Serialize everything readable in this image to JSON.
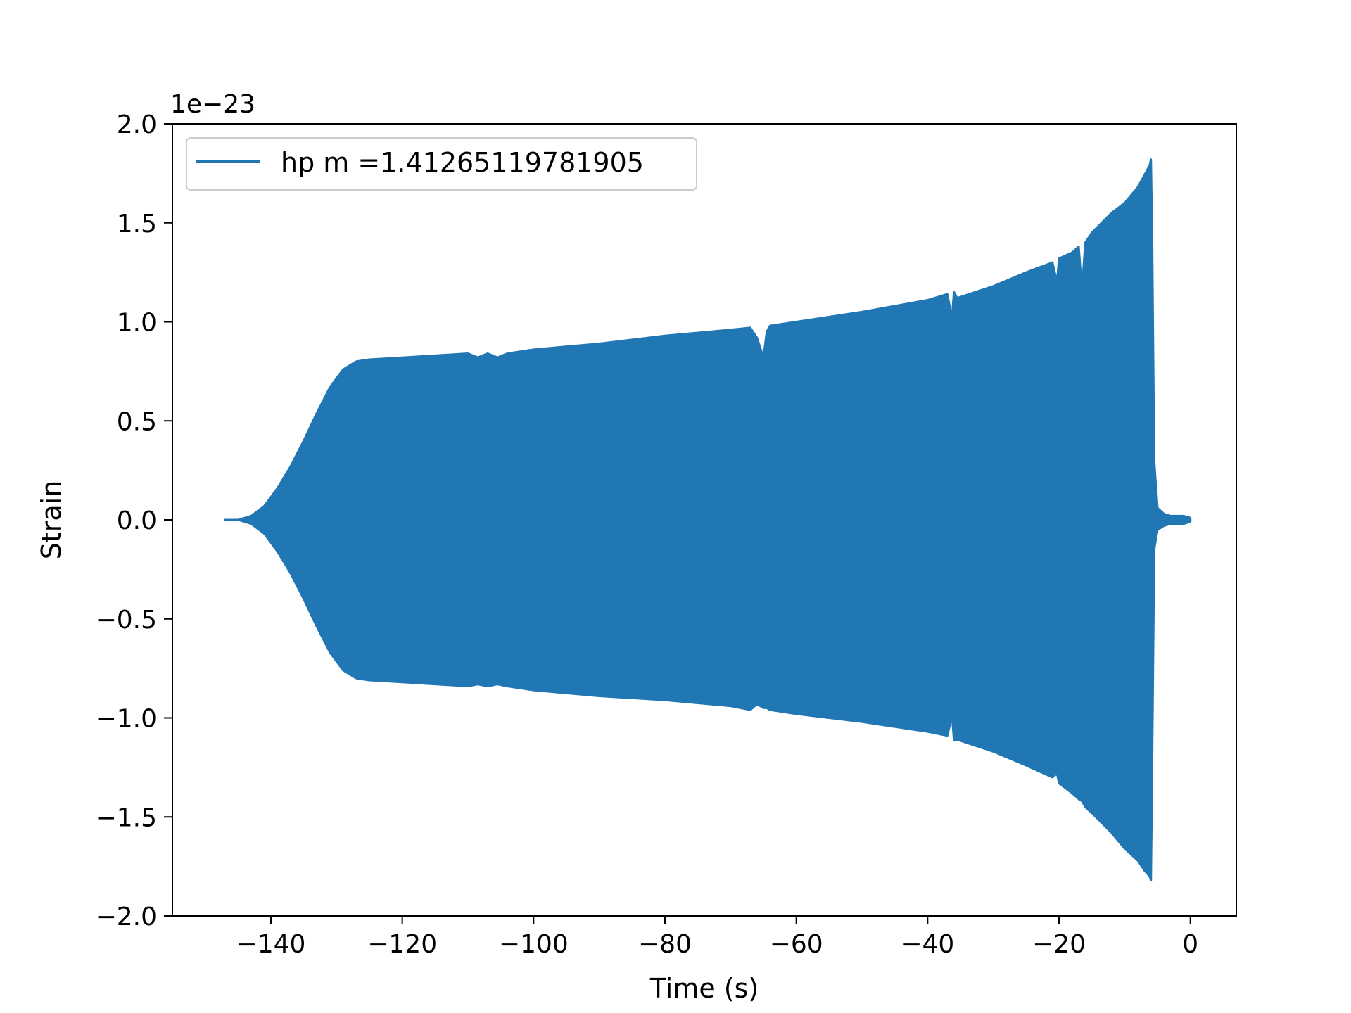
{
  "chart_data": {
    "type": "area",
    "title": "",
    "xlabel": "Time (s)",
    "ylabel": "Strain",
    "y_offset_text": "1e−23",
    "xlim": [
      -155,
      7
    ],
    "ylim": [
      -2.0,
      2.0
    ],
    "x_ticks": [
      -140,
      -120,
      -100,
      -80,
      -60,
      -40,
      -20,
      0
    ],
    "x_tick_labels": [
      "−140",
      "−120",
      "−100",
      "−80",
      "−60",
      "−40",
      "−20",
      "0"
    ],
    "y_ticks": [
      2.0,
      1.5,
      1.0,
      0.5,
      0.0,
      -0.5,
      -1.0,
      -1.5,
      -2.0
    ],
    "y_tick_labels": [
      "2.0",
      "1.5",
      "1.0",
      "0.5",
      "0.0",
      "−0.5",
      "−1.0",
      "−1.5",
      "−2.0"
    ],
    "grid": false,
    "legend_position": "top-left",
    "series": [
      {
        "name": "hp m =1.41265119781905",
        "color": "#2077b4",
        "envelope_upper": {
          "x": [
            -147,
            -145,
            -143,
            -141,
            -139,
            -137,
            -135,
            -133,
            -131,
            -129,
            -127,
            -125,
            -120,
            -110,
            -108.5,
            -107,
            -105.5,
            -104,
            -100,
            -90,
            -80,
            -70,
            -67,
            -66,
            -65,
            -64.5,
            -64,
            -60,
            -50,
            -40,
            -37,
            -36.3,
            -36,
            -35.5,
            -30,
            -25,
            -21,
            -20.3,
            -20,
            -18,
            -17,
            -16.5,
            -16,
            -15,
            -12,
            -10,
            -8,
            -7,
            -6.2,
            -6,
            -5.8,
            -5.5,
            -5,
            -4,
            -3,
            -2,
            -1,
            0
          ],
          "y": [
            0.0,
            0.0,
            0.02,
            0.07,
            0.16,
            0.27,
            0.4,
            0.54,
            0.67,
            0.76,
            0.8,
            0.81,
            0.82,
            0.84,
            0.82,
            0.84,
            0.82,
            0.84,
            0.86,
            0.89,
            0.93,
            0.96,
            0.97,
            0.92,
            0.82,
            0.95,
            0.98,
            1.0,
            1.05,
            1.11,
            1.14,
            1.02,
            1.15,
            1.12,
            1.18,
            1.25,
            1.3,
            1.2,
            1.32,
            1.35,
            1.38,
            1.16,
            1.4,
            1.45,
            1.55,
            1.6,
            1.68,
            1.74,
            1.79,
            1.82,
            1.4,
            0.3,
            0.06,
            0.03,
            0.02,
            0.02,
            0.02,
            0.01
          ]
        },
        "envelope_lower": {
          "x": [
            -147,
            -145,
            -143,
            -141,
            -139,
            -137,
            -135,
            -133,
            -131,
            -129,
            -127,
            -125,
            -120,
            -110,
            -108.5,
            -107,
            -105.5,
            -104,
            -100,
            -90,
            -80,
            -70,
            -67,
            -66,
            -65,
            -64.5,
            -64,
            -60,
            -50,
            -40,
            -37,
            -36.3,
            -36,
            -35.5,
            -30,
            -25,
            -21,
            -20.3,
            -20,
            -18,
            -17,
            -16.5,
            -16,
            -15,
            -12,
            -10,
            -8,
            -7,
            -6.2,
            -6,
            -5.8,
            -5.5,
            -5,
            -4,
            -3,
            -2,
            -1,
            0
          ],
          "y": [
            0.0,
            0.0,
            -0.02,
            -0.07,
            -0.16,
            -0.27,
            -0.4,
            -0.54,
            -0.67,
            -0.76,
            -0.8,
            -0.81,
            -0.82,
            -0.84,
            -0.83,
            -0.84,
            -0.83,
            -0.84,
            -0.86,
            -0.89,
            -0.91,
            -0.94,
            -0.96,
            -0.93,
            -0.95,
            -0.95,
            -0.96,
            -0.98,
            -1.02,
            -1.07,
            -1.09,
            -0.99,
            -1.11,
            -1.11,
            -1.17,
            -1.24,
            -1.3,
            -1.28,
            -1.33,
            -1.38,
            -1.41,
            -1.42,
            -1.45,
            -1.48,
            -1.58,
            -1.66,
            -1.72,
            -1.77,
            -1.8,
            -1.82,
            -1.2,
            -0.15,
            -0.05,
            -0.03,
            -0.02,
            -0.02,
            -0.02,
            -0.01
          ]
        }
      }
    ]
  }
}
